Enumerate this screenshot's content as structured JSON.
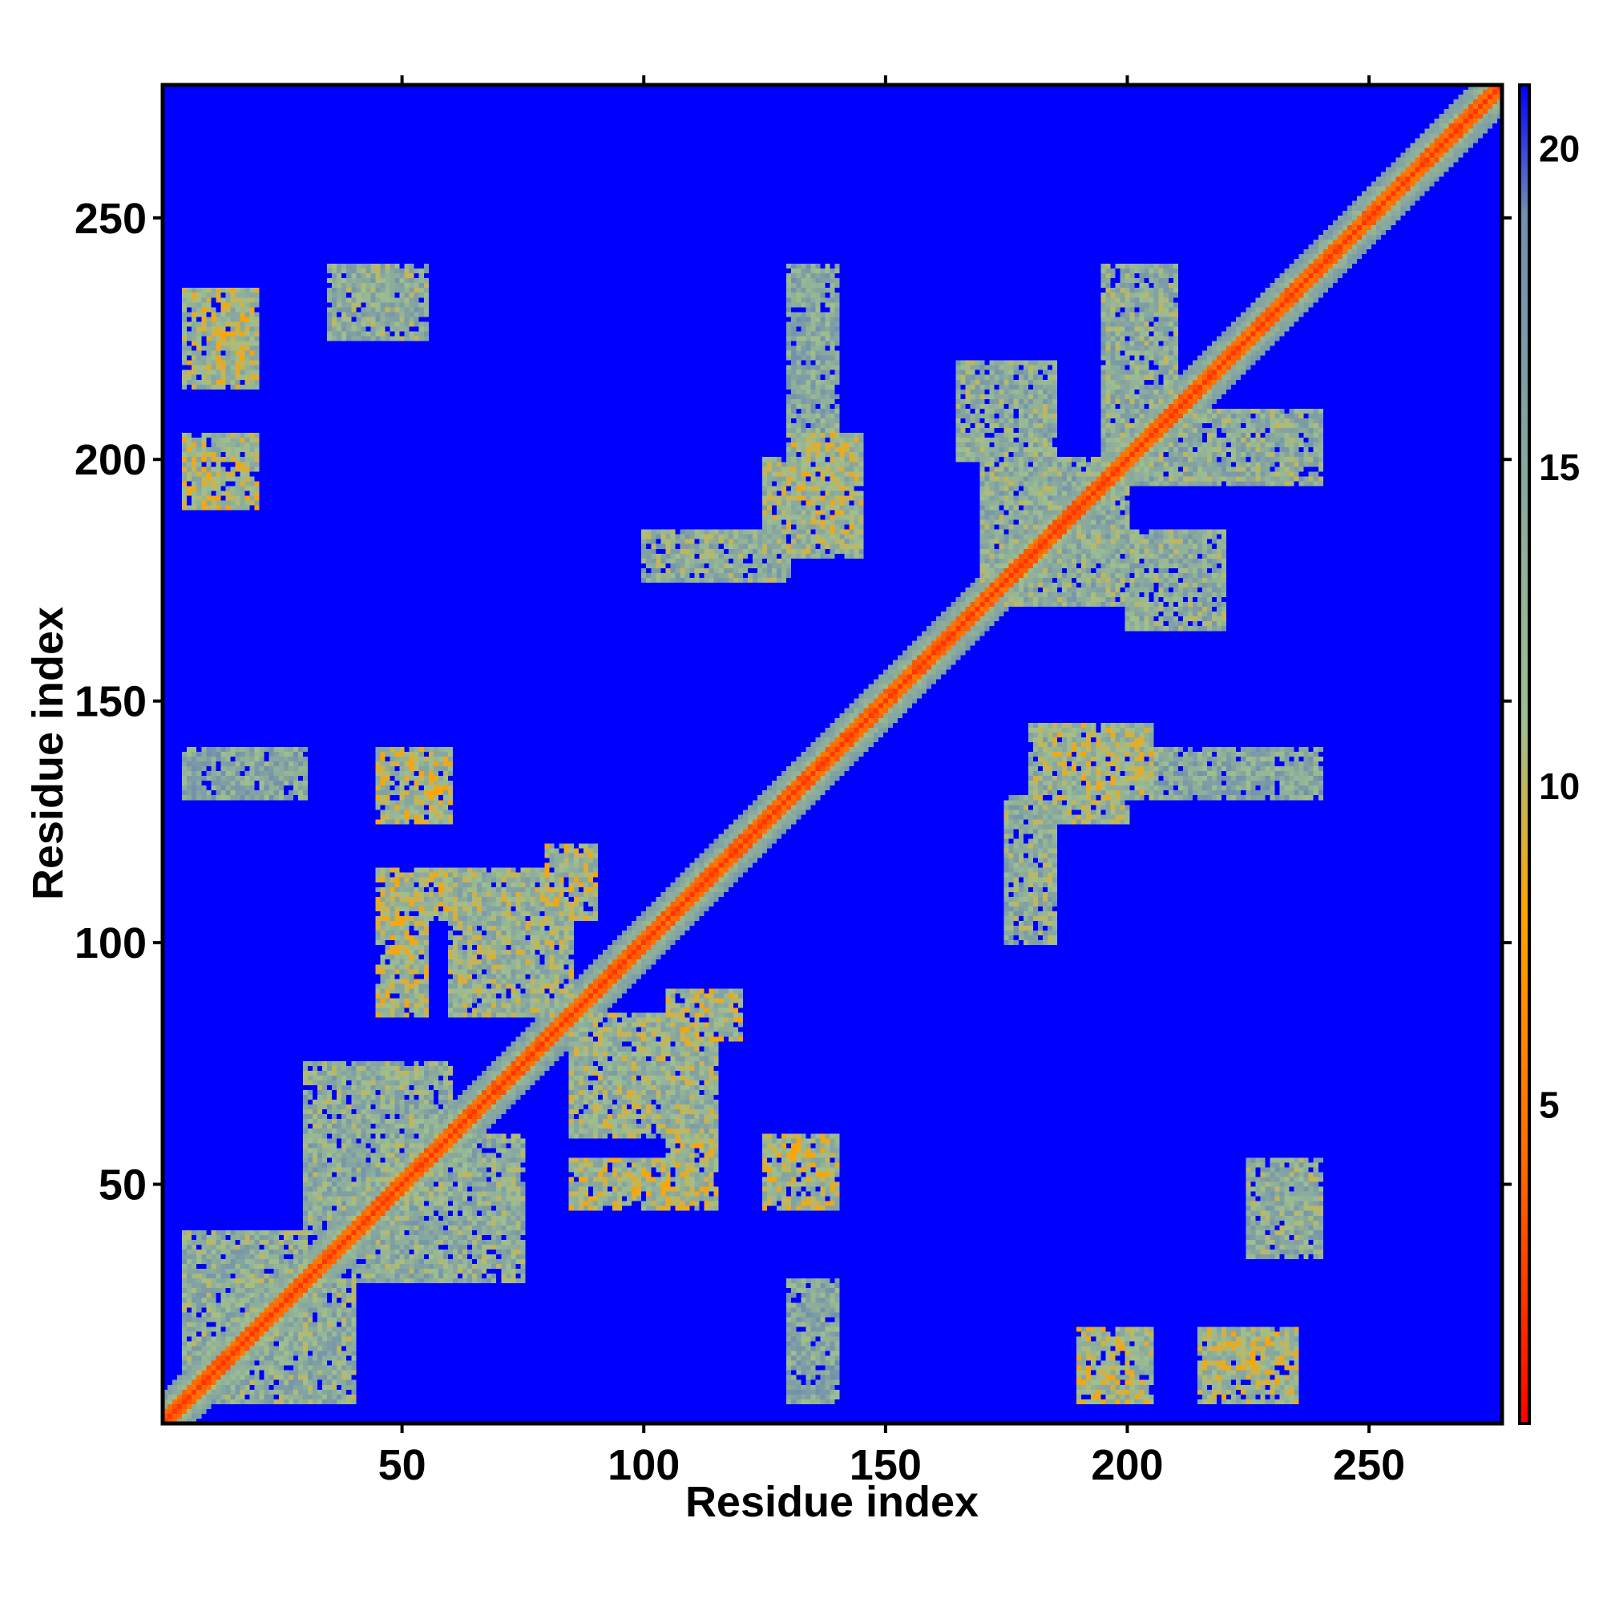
{
  "chart_data": {
    "type": "heatmap",
    "title": "",
    "xlabel": "Residue index",
    "ylabel": "Residue index",
    "n_residues": 277,
    "xlim": [
      1,
      277
    ],
    "ylim": [
      1,
      277
    ],
    "x_ticks": [
      50,
      100,
      150,
      200,
      250
    ],
    "y_ticks": [
      50,
      100,
      150,
      200,
      250
    ],
    "x_tick_labels": [
      "50",
      "100",
      "150",
      "200",
      "250"
    ],
    "y_tick_labels": [
      "50",
      "100",
      "150",
      "200",
      "250"
    ],
    "colorbar": {
      "range": [
        0,
        21
      ],
      "ticks": [
        5,
        10,
        15,
        20
      ],
      "tick_labels": [
        "5",
        "10",
        "15",
        "20"
      ],
      "colors": [
        "#ff0000",
        "#ff6a00",
        "#ffa500",
        "#9fbf8f",
        "#6f8fb0",
        "#0000ff"
      ],
      "stops": [
        0,
        4,
        8,
        11,
        19,
        21
      ]
    },
    "matrix_description": "symmetric residue-residue distance map (Angstrom); red diagonal band, green/orange contact patches, blue background",
    "contact_patches": [
      {
        "x": [
          60,
          85
        ],
        "y": [
          85,
          115
        ],
        "level": 8
      },
      {
        "x": [
          85,
          115
        ],
        "y": [
          45,
          55
        ],
        "level": 7
      },
      {
        "x": [
          105,
          120
        ],
        "y": [
          80,
          90
        ],
        "level": 7
      },
      {
        "x": [
          45,
          60
        ],
        "y": [
          125,
          140
        ],
        "level": 7
      },
      {
        "x": [
          45,
          60
        ],
        "y": [
          105,
          115
        ],
        "level": 7
      },
      {
        "x": [
          125,
          140
        ],
        "y": [
          45,
          55
        ],
        "level": 7
      },
      {
        "x": [
          130,
          145
        ],
        "y": [
          185,
          205
        ],
        "level": 7
      },
      {
        "x": [
          100,
          130
        ],
        "y": [
          175,
          185
        ],
        "level": 9
      },
      {
        "x": [
          180,
          200
        ],
        "y": [
          125,
          145
        ],
        "level": 8
      },
      {
        "x": [
          190,
          205
        ],
        "y": [
          5,
          20
        ],
        "level": 7
      },
      {
        "x": [
          215,
          235
        ],
        "y": [
          5,
          20
        ],
        "level": 7
      },
      {
        "x": [
          5,
          20
        ],
        "y": [
          190,
          200
        ],
        "level": 7
      },
      {
        "x": [
          5,
          20
        ],
        "y": [
          215,
          230
        ],
        "level": 7
      },
      {
        "x": [
          35,
          50
        ],
        "y": [
          225,
          240
        ],
        "level": 9
      },
      {
        "x": [
          200,
          240
        ],
        "y": [
          195,
          210
        ],
        "level": 9
      },
      {
        "x": [
          175,
          200
        ],
        "y": [
          170,
          200
        ],
        "level": 9
      },
      {
        "x": [
          225,
          240
        ],
        "y": [
          35,
          55
        ],
        "level": 9
      },
      {
        "x": [
          5,
          30
        ],
        "y": [
          5,
          40
        ],
        "level": 9
      },
      {
        "x": [
          30,
          60
        ],
        "y": [
          40,
          75
        ],
        "level": 9
      },
      {
        "x": [
          165,
          185
        ],
        "y": [
          200,
          220
        ],
        "level": 9
      },
      {
        "x": [
          5,
          30
        ],
        "y": [
          130,
          140
        ],
        "level": 10
      },
      {
        "x": [
          200,
          240
        ],
        "y": [
          130,
          140
        ],
        "level": 10
      }
    ]
  }
}
